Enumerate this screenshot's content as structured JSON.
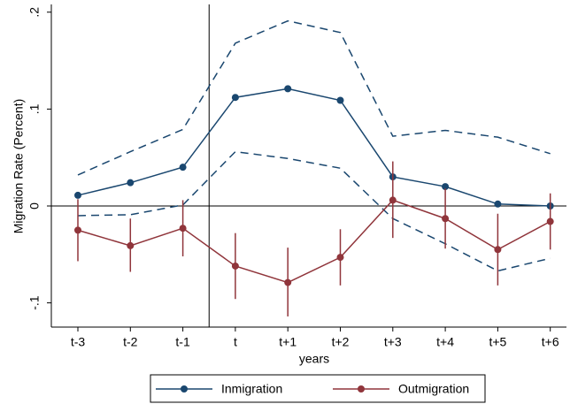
{
  "chart_data": {
    "type": "line",
    "ylabel": "Migration Rate (Percent)",
    "xlabel": "years",
    "categories": [
      "t-3",
      "t-2",
      "t-1",
      "t",
      "t+1",
      "t+2",
      "t+3",
      "t+4",
      "t+5",
      "t+6"
    ],
    "ylim": [
      -0.125,
      0.208
    ],
    "yticks": [
      {
        "value": -0.1,
        "label": "-.1"
      },
      0,
      {
        "value": 0.1,
        "label": ".1"
      },
      {
        "value": 0.2,
        "label": ".2"
      }
    ],
    "xline": 2.5,
    "yline": 0,
    "legend": "bottom",
    "series": [
      {
        "name": "Inmigration",
        "color": "#1a476f",
        "values": [
          0.011,
          0.024,
          0.04,
          0.112,
          0.121,
          0.109,
          0.03,
          0.02,
          0.002,
          0.0
        ],
        "ci_style": "dashed",
        "lower": [
          -0.01,
          -0.009,
          0.001,
          0.056,
          0.049,
          0.039,
          -0.013,
          -0.039,
          -0.067,
          -0.054
        ],
        "upper": [
          0.032,
          0.056,
          0.079,
          0.168,
          0.191,
          0.179,
          0.072,
          0.078,
          0.071,
          0.054
        ]
      },
      {
        "name": "Outmigration",
        "color": "#90353b",
        "values": [
          -0.025,
          -0.041,
          -0.023,
          -0.062,
          -0.079,
          -0.053,
          0.006,
          -0.013,
          -0.045,
          -0.016
        ],
        "ci_style": "bars",
        "lower": [
          -0.057,
          -0.068,
          -0.052,
          -0.096,
          -0.114,
          -0.082,
          -0.033,
          -0.044,
          -0.082,
          -0.045
        ],
        "upper": [
          0.007,
          -0.013,
          0.006,
          -0.028,
          -0.043,
          -0.024,
          0.046,
          0.018,
          -0.008,
          0.013
        ]
      }
    ]
  }
}
